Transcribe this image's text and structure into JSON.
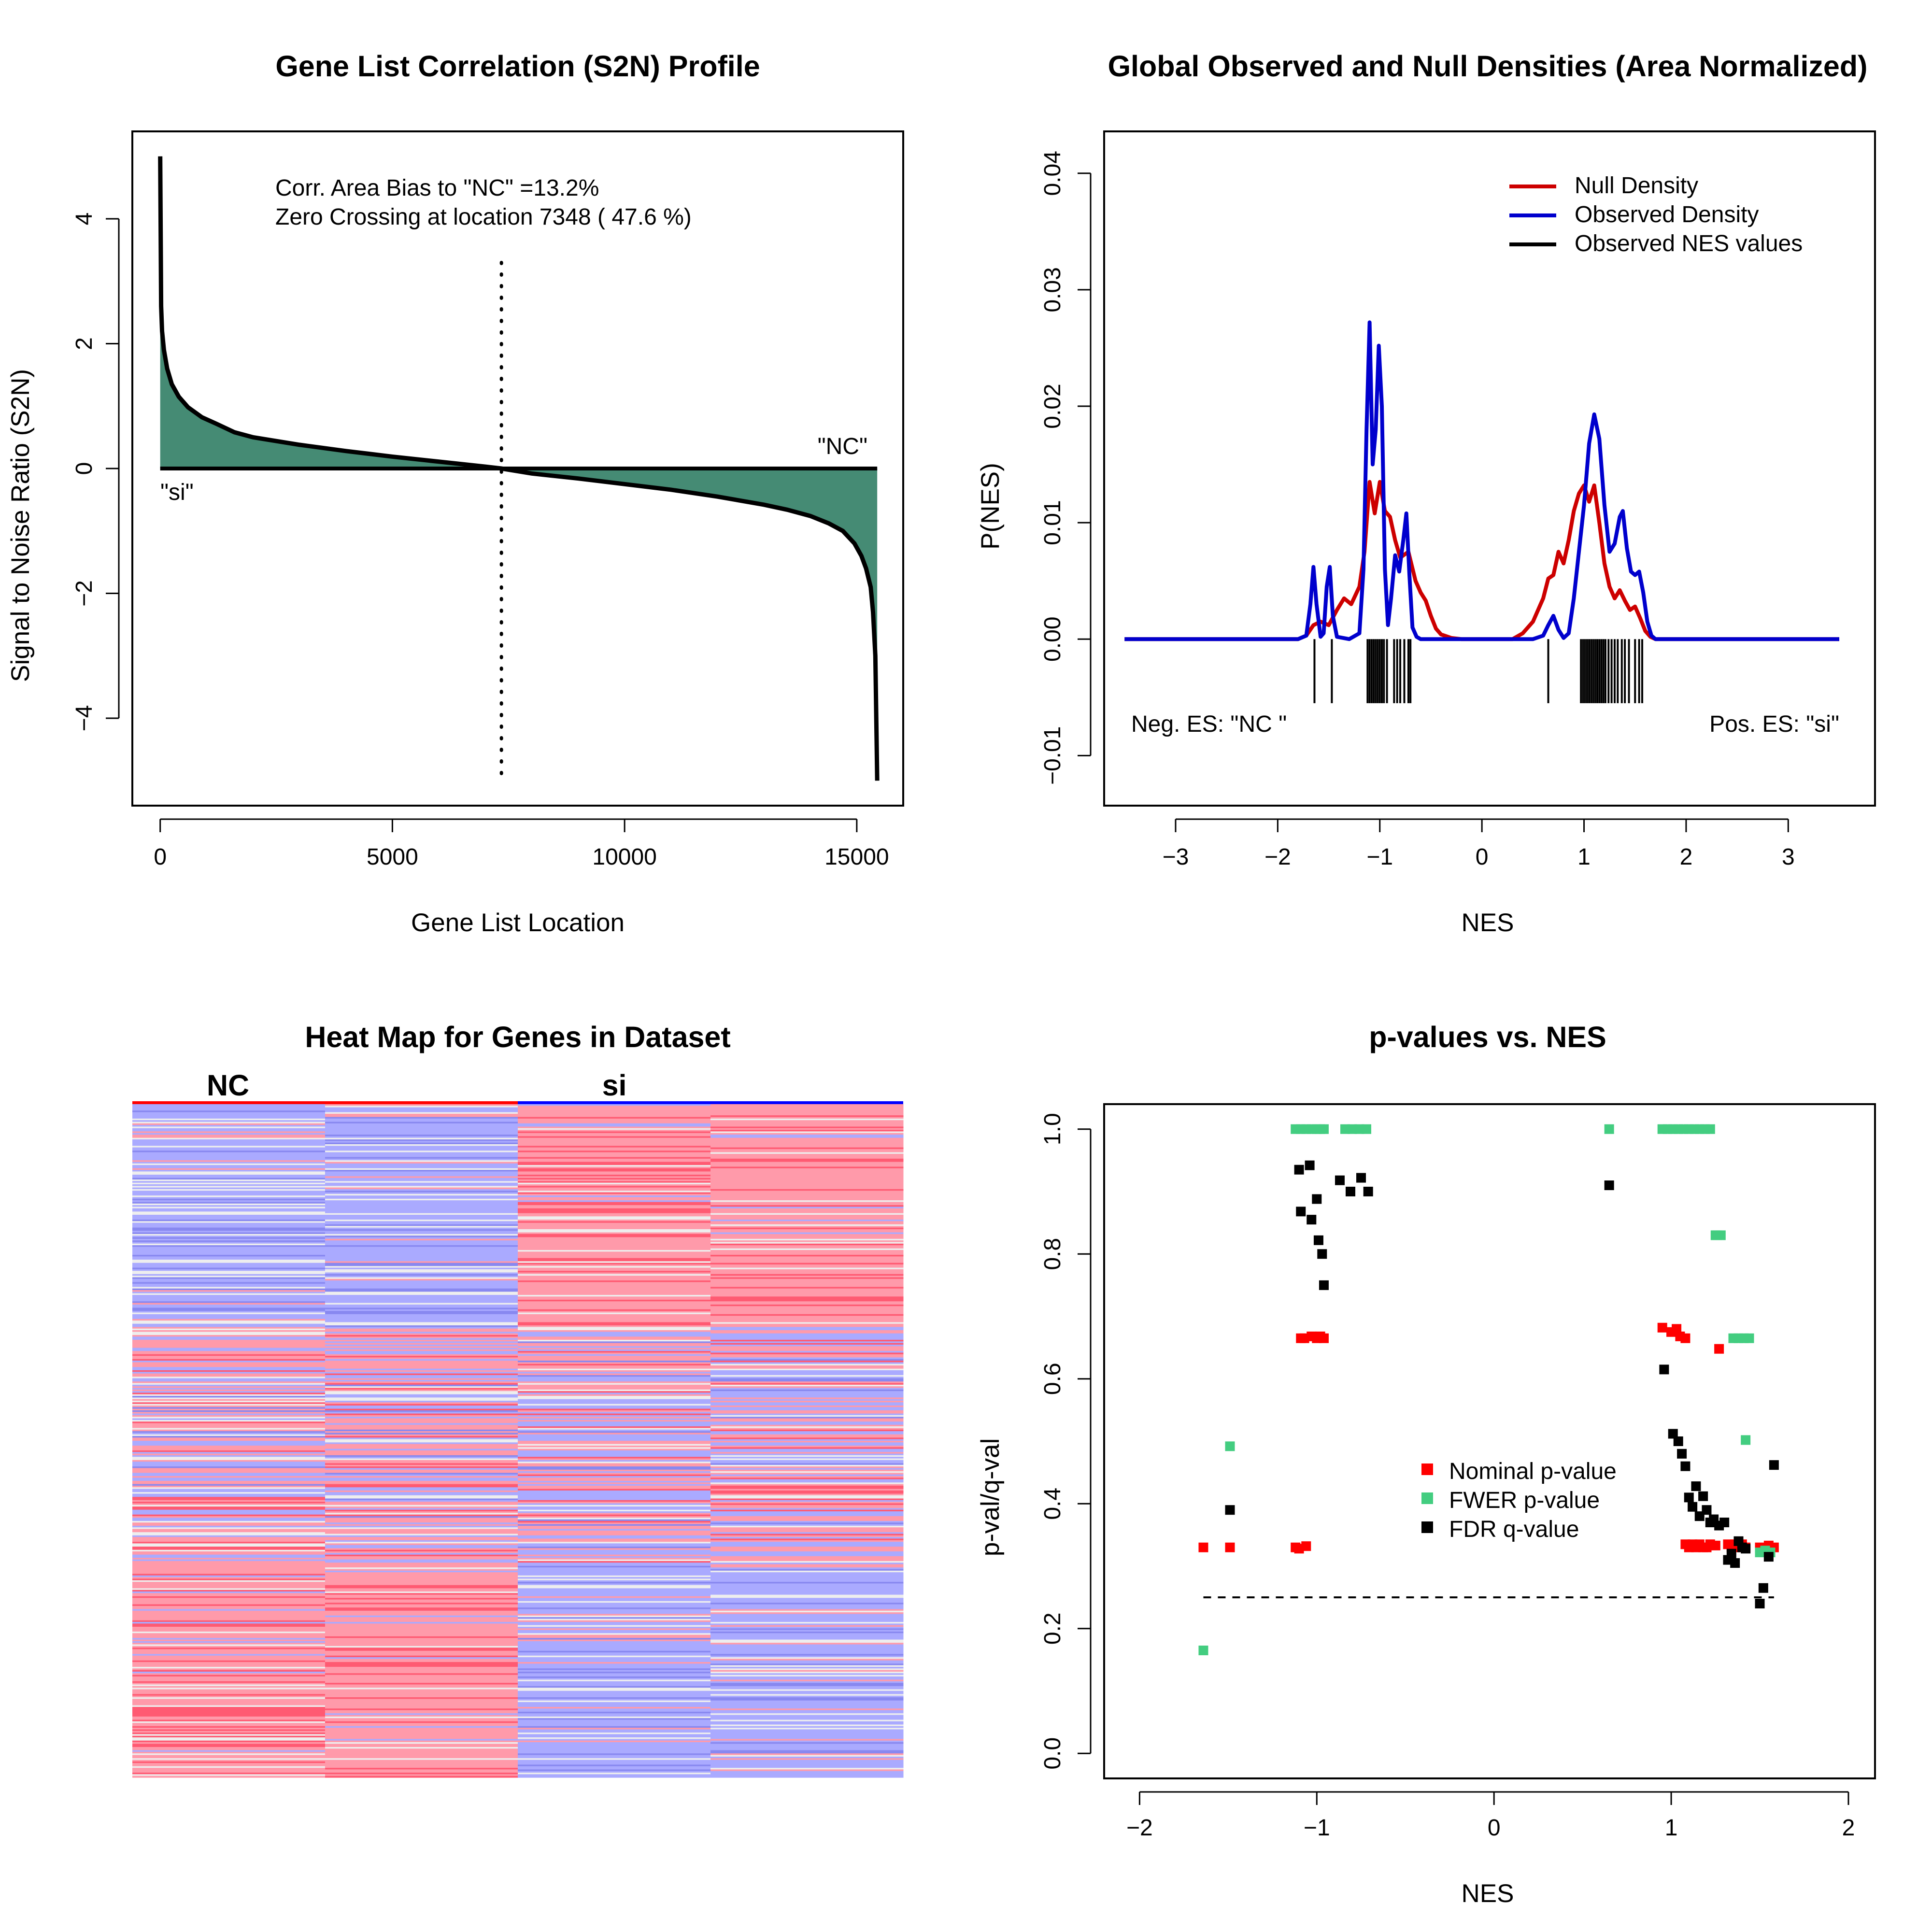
{
  "chart_data": [
    {
      "type": "area",
      "title": "Gene List Correlation (S2N) Profile",
      "xlabel": "Gene List Location",
      "ylabel": "Signal to Noise Ratio (S2N)",
      "xlim": [
        -600,
        16000
      ],
      "ylim": [
        -5.4,
        5.4
      ],
      "x_ticks": [
        0,
        5000,
        10000,
        15000
      ],
      "y_ticks": [
        -4,
        -2,
        0,
        2,
        4
      ],
      "x_tick_labels": [
        "0",
        "5000",
        "10000",
        "15000"
      ],
      "y_tick_labels": [
        "−4",
        "−2",
        "0",
        "2",
        "4"
      ],
      "annotation_bias": "Corr. Area Bias to \"NC\" =13.2%",
      "annotation_zero": "Zero Crossing at location  7348  ( 47.6  %)",
      "label_left": "\"si\"",
      "label_right": "\"NC\"",
      "zero_crossing": 7348,
      "n_genes": 15440,
      "fill_color": "#458B74",
      "profile": {
        "x": [
          0,
          20,
          40,
          80,
          150,
          250,
          400,
          600,
          900,
          1200,
          1600,
          2000,
          3000,
          4000,
          5000,
          6000,
          7000,
          7348,
          8000,
          9000,
          10000,
          11000,
          12000,
          13000,
          13500,
          14000,
          14400,
          14700,
          14950,
          15100,
          15200,
          15300,
          15350,
          15400,
          15440
        ],
        "y": [
          5.0,
          2.6,
          2.2,
          1.9,
          1.6,
          1.35,
          1.15,
          0.98,
          0.82,
          0.72,
          0.58,
          0.5,
          0.38,
          0.28,
          0.19,
          0.11,
          0.03,
          0.0,
          -0.08,
          -0.16,
          -0.25,
          -0.34,
          -0.45,
          -0.58,
          -0.66,
          -0.76,
          -0.88,
          -1.0,
          -1.2,
          -1.4,
          -1.6,
          -1.9,
          -2.3,
          -3.0,
          -5.0
        ]
      }
    },
    {
      "type": "line",
      "title": "Global Observed and Null Densities (Area Normalized)",
      "xlabel": "NES",
      "ylabel": "P(NES)",
      "xlim": [
        -3.7,
        3.85
      ],
      "ylim": [
        -0.0143,
        0.0436
      ],
      "x_ticks": [
        -3,
        -2,
        -1,
        0,
        1,
        2,
        3
      ],
      "y_ticks": [
        -0.01,
        0.0,
        0.01,
        0.02,
        0.03,
        0.04
      ],
      "x_tick_labels": [
        "−3",
        "−2",
        "−1",
        "0",
        "1",
        "2",
        "3"
      ],
      "y_tick_labels": [
        "−0.01",
        "0.00",
        "0.01",
        "0.02",
        "0.03",
        "0.04"
      ],
      "annotation_neg": "Neg. ES: \"NC \"",
      "annotation_pos": "Pos. ES: \"si\"",
      "legend": [
        {
          "name": "Null Density",
          "color": "#CD0000"
        },
        {
          "name": "Observed Density",
          "color": "#0000CD"
        },
        {
          "name": "Observed NES values",
          "color": "#000000"
        }
      ],
      "legend_position": "top-right",
      "series": [
        {
          "name": "Null Density",
          "color": "#CD0000",
          "x": [
            -3.5,
            -1.8,
            -1.72,
            -1.65,
            -1.58,
            -1.5,
            -1.42,
            -1.35,
            -1.28,
            -1.2,
            -1.15,
            -1.1,
            -1.05,
            -1.0,
            -0.95,
            -0.9,
            -0.85,
            -0.8,
            -0.72,
            -0.65,
            -0.6,
            -0.55,
            -0.5,
            -0.45,
            -0.4,
            -0.3,
            -0.2,
            -0.1,
            0.0,
            0.3,
            0.4,
            0.5,
            0.6,
            0.65,
            0.7,
            0.75,
            0.8,
            0.85,
            0.9,
            0.95,
            1.0,
            1.05,
            1.1,
            1.15,
            1.2,
            1.25,
            1.3,
            1.35,
            1.4,
            1.45,
            1.5,
            1.55,
            1.6,
            1.65,
            1.7,
            1.8,
            3.5
          ],
          "y": [
            0,
            0,
            0.0003,
            0.0012,
            0.0015,
            0.0012,
            0.0025,
            0.0035,
            0.003,
            0.0045,
            0.0075,
            0.0135,
            0.0108,
            0.0135,
            0.011,
            0.0105,
            0.0085,
            0.007,
            0.0075,
            0.005,
            0.004,
            0.0033,
            0.002,
            0.0009,
            0.0004,
            0.0001,
            0,
            0,
            0,
            0,
            0.0005,
            0.0015,
            0.0035,
            0.0052,
            0.0055,
            0.0075,
            0.0065,
            0.0085,
            0.011,
            0.0125,
            0.0132,
            0.0118,
            0.0132,
            0.01,
            0.0065,
            0.0045,
            0.0035,
            0.0042,
            0.0033,
            0.0025,
            0.0028,
            0.0018,
            0.0007,
            0.0002,
            0,
            0,
            0
          ]
        },
        {
          "name": "Observed Density",
          "color": "#0000CD",
          "x": [
            -3.5,
            -1.8,
            -1.72,
            -1.68,
            -1.65,
            -1.62,
            -1.58,
            -1.55,
            -1.52,
            -1.49,
            -1.46,
            -1.42,
            -1.3,
            -1.2,
            -1.16,
            -1.13,
            -1.1,
            -1.07,
            -1.04,
            -1.01,
            -0.98,
            -0.95,
            -0.92,
            -0.89,
            -0.85,
            -0.81,
            -0.77,
            -0.74,
            -0.71,
            -0.68,
            -0.64,
            -0.6,
            -0.5,
            -0.4,
            0.5,
            0.6,
            0.65,
            0.7,
            0.75,
            0.8,
            0.85,
            0.9,
            1.0,
            1.05,
            1.1,
            1.15,
            1.2,
            1.25,
            1.3,
            1.35,
            1.38,
            1.42,
            1.46,
            1.5,
            1.54,
            1.58,
            1.62,
            1.66,
            1.7,
            3.5
          ],
          "y": [
            0,
            0,
            0.0003,
            0.003,
            0.0062,
            0.003,
            0.0002,
            0.0005,
            0.0045,
            0.0062,
            0.002,
            0.0002,
            0,
            0.0005,
            0.006,
            0.018,
            0.0272,
            0.015,
            0.018,
            0.0252,
            0.02,
            0.006,
            0.0012,
            0.0035,
            0.0072,
            0.0058,
            0.0085,
            0.0108,
            0.0055,
            0.001,
            0.0002,
            0,
            0,
            0,
            0,
            0.0003,
            0.0012,
            0.002,
            0.0008,
            0.0001,
            0.0005,
            0.0035,
            0.0115,
            0.0168,
            0.0193,
            0.0172,
            0.0115,
            0.0075,
            0.0082,
            0.0105,
            0.011,
            0.0078,
            0.0058,
            0.0055,
            0.0058,
            0.004,
            0.0015,
            0.0003,
            0,
            0
          ]
        }
      ],
      "nes_ticks": [
        -1.64,
        -1.47,
        -1.12,
        -1.1,
        -1.08,
        -1.06,
        -1.04,
        -1.02,
        -1.0,
        -0.98,
        -0.96,
        -0.93,
        -0.86,
        -0.83,
        -0.8,
        -0.76,
        -0.72,
        -0.7,
        0.65,
        0.97,
        0.99,
        1.01,
        1.03,
        1.05,
        1.07,
        1.09,
        1.11,
        1.13,
        1.15,
        1.17,
        1.19,
        1.21,
        1.24,
        1.27,
        1.3,
        1.33,
        1.37,
        1.4,
        1.44,
        1.5,
        1.54,
        1.57
      ]
    },
    {
      "type": "heatmap",
      "title": "Heat Map for Genes in Dataset",
      "group_labels": [
        "NC",
        "si"
      ],
      "group_colors": [
        "#FF0000",
        "#0000FF"
      ],
      "n_columns": 4,
      "n_rows": 420,
      "color_high": "#FF9AAA",
      "color_low": "#AAAAFF",
      "color_mid": "#EEEEEE",
      "color_strong_high": "#FF5A72",
      "color_strong_low": "#8888F0"
    },
    {
      "type": "scatter",
      "title": "p-values vs. NES",
      "xlabel": "NES",
      "ylabel": "p-val/q-val",
      "xlim": [
        -2.2,
        2.15
      ],
      "ylim": [
        -0.04,
        1.04
      ],
      "x_ticks": [
        -2,
        -1,
        0,
        1,
        2
      ],
      "y_ticks": [
        0.0,
        0.2,
        0.4,
        0.6,
        0.8,
        1.0
      ],
      "x_tick_labels": [
        "−2",
        "−1",
        "0",
        "1",
        "2"
      ],
      "y_tick_labels": [
        "0.0",
        "0.2",
        "0.4",
        "0.6",
        "0.8",
        "1.0"
      ],
      "threshold": {
        "y": 0.25,
        "x": [
          -1.64,
          1.58
        ]
      },
      "legend": [
        {
          "name": "Nominal p-value",
          "color": "#FF0000"
        },
        {
          "name": "FWER p-value",
          "color": "#43CD80"
        },
        {
          "name": "FDR q-value",
          "color": "#000000"
        }
      ],
      "legend_position": "center-right",
      "series": [
        {
          "name": "Nominal p-value",
          "color": "#FF0000",
          "x": [
            -1.64,
            -1.49,
            -1.12,
            -1.1,
            -1.06,
            -1.09,
            -1.07,
            -1.03,
            -1.0,
            -0.98,
            -0.96,
            0.95,
            1.0,
            1.03,
            1.05,
            1.08,
            1.27,
            1.08,
            1.1,
            1.12,
            1.14,
            1.16,
            1.18,
            1.2,
            1.22,
            1.25,
            1.32,
            1.34,
            1.36,
            1.38,
            1.4,
            1.42,
            1.5,
            1.55,
            1.58
          ],
          "y": [
            0.33,
            0.33,
            0.33,
            0.328,
            0.332,
            0.665,
            0.665,
            0.668,
            0.665,
            0.668,
            0.665,
            0.682,
            0.675,
            0.68,
            0.668,
            0.665,
            0.648,
            0.335,
            0.33,
            0.335,
            0.33,
            0.335,
            0.33,
            0.33,
            0.335,
            0.333,
            0.335,
            0.33,
            0.335,
            0.33,
            0.335,
            0.33,
            0.33,
            0.333,
            0.33
          ]
        },
        {
          "name": "FWER p-value",
          "color": "#43CD80",
          "x": [
            -1.64,
            -1.49,
            -1.12,
            -1.09,
            -1.06,
            -1.03,
            -1.0,
            -0.98,
            -0.96,
            -0.84,
            -0.8,
            -0.76,
            -0.72,
            0.65,
            0.95,
            0.98,
            1.01,
            1.04,
            1.07,
            1.1,
            1.13,
            1.16,
            1.19,
            1.22,
            1.25,
            1.26,
            1.28,
            1.35,
            1.38,
            1.41,
            1.44,
            1.42,
            1.5,
            1.53,
            1.56
          ],
          "y": [
            0.165,
            0.492,
            1.0,
            1.0,
            1.0,
            1.0,
            1.0,
            1.0,
            1.0,
            1.0,
            1.0,
            1.0,
            1.0,
            1.0,
            1.0,
            1.0,
            1.0,
            1.0,
            1.0,
            1.0,
            1.0,
            1.0,
            1.0,
            1.0,
            0.83,
            0.83,
            0.83,
            0.665,
            0.665,
            0.665,
            0.665,
            0.502,
            0.322,
            0.325,
            0.322
          ]
        },
        {
          "name": "FDR q-value",
          "color": "#000000",
          "x": [
            -1.49,
            -1.1,
            -1.04,
            -1.09,
            -1.03,
            -1.0,
            -0.99,
            -0.97,
            -0.96,
            -0.87,
            -0.81,
            -0.75,
            -0.71,
            0.65,
            0.96,
            1.01,
            1.04,
            1.06,
            1.08,
            1.1,
            1.12,
            1.14,
            1.16,
            1.18,
            1.2,
            1.22,
            1.24,
            1.27,
            1.3,
            1.32,
            1.34,
            1.36,
            1.38,
            1.4,
            1.42,
            1.5,
            1.52,
            1.58,
            1.55
          ],
          "y": [
            0.39,
            0.935,
            0.942,
            0.868,
            0.855,
            0.888,
            0.822,
            0.8,
            0.75,
            0.918,
            0.9,
            0.922,
            0.9,
            0.91,
            0.615,
            0.512,
            0.5,
            0.48,
            0.46,
            0.41,
            0.395,
            0.428,
            0.38,
            0.412,
            0.39,
            0.37,
            0.375,
            0.365,
            0.37,
            0.31,
            0.32,
            0.305,
            0.34,
            0.33,
            0.328,
            0.24,
            0.265,
            0.462,
            0.315
          ]
        }
      ]
    }
  ]
}
